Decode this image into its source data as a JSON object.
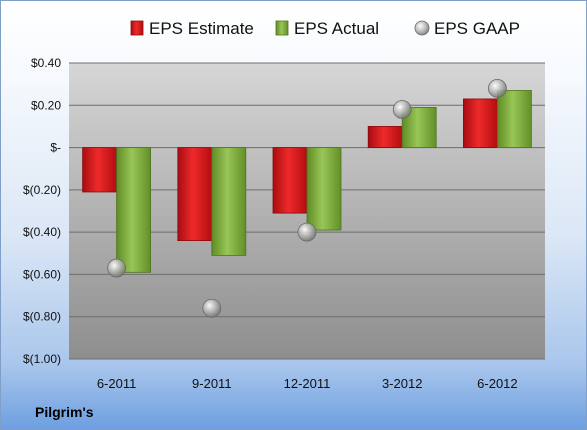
{
  "company": "Pilgrim's",
  "colors": {
    "estimate": "#d9151c",
    "actual": "#7fb13a",
    "gaap": "#b0b0b0"
  },
  "chart_data": {
    "type": "bar",
    "categories": [
      "6-2011",
      "9-2011",
      "12-2011",
      "3-2012",
      "6-2012"
    ],
    "series": [
      {
        "name": "EPS Estimate",
        "kind": "bar",
        "values": [
          -0.21,
          -0.44,
          -0.31,
          0.1,
          0.23
        ]
      },
      {
        "name": "EPS Actual",
        "kind": "bar",
        "values": [
          -0.59,
          -0.51,
          -0.39,
          0.19,
          0.27
        ]
      },
      {
        "name": "EPS GAAP",
        "kind": "marker",
        "values": [
          -0.57,
          -0.76,
          -0.4,
          0.18,
          0.28
        ]
      }
    ],
    "ylim": [
      -1.0,
      0.4
    ],
    "yticks": [
      0.4,
      0.2,
      0,
      -0.2,
      -0.4,
      -0.6,
      -0.8,
      -1.0
    ],
    "ytick_labels": [
      "$0.40",
      "$0.20",
      "$-",
      "$(0.20)",
      "$(0.40)",
      "$(0.60)",
      "$(0.80)",
      "$(1.00)"
    ],
    "grid": true,
    "legend": "top"
  }
}
